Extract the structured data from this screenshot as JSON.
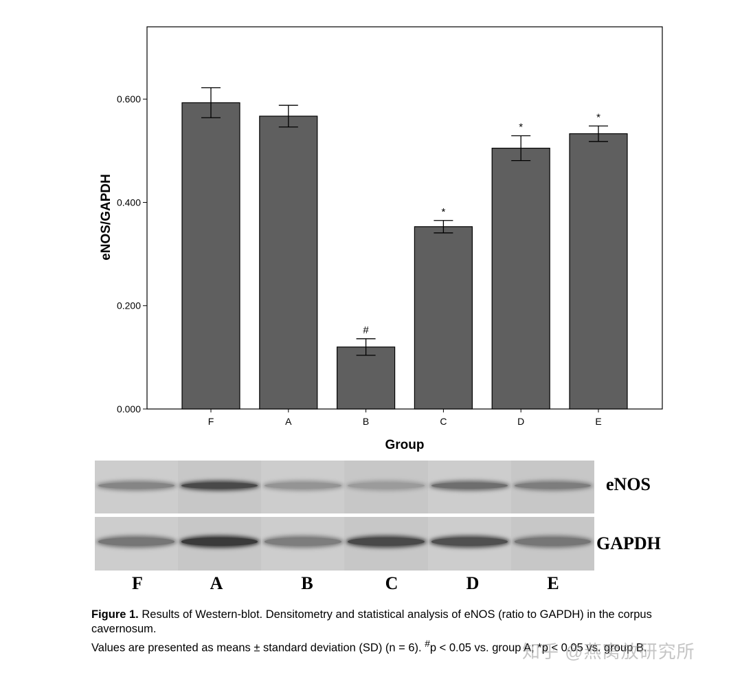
{
  "chart_data": {
    "type": "bar",
    "title": "",
    "xlabel": "Group",
    "ylabel": "eNOS/GAPDH",
    "categories": [
      "F",
      "A",
      "B",
      "C",
      "D",
      "E"
    ],
    "values": [
      0.593,
      0.567,
      0.12,
      0.353,
      0.505,
      0.533
    ],
    "error": [
      0.029,
      0.021,
      0.016,
      0.012,
      0.024,
      0.015
    ],
    "annotations": [
      "",
      "",
      "#",
      "*",
      "*",
      "*"
    ],
    "yticks": [
      "0.000",
      "0.200",
      "0.400",
      "0.600"
    ],
    "ylim": [
      0,
      0.74
    ],
    "grid": false,
    "bar_color": "#5f5f5f"
  },
  "blot": {
    "rows": [
      "eNOS",
      "GAPDH"
    ],
    "lanes": [
      "F",
      "A",
      "B",
      "C",
      "D",
      "E"
    ],
    "enos_intensity": [
      0.45,
      0.85,
      0.35,
      0.3,
      0.6,
      0.5
    ],
    "gapdh_intensity": [
      0.55,
      0.95,
      0.5,
      0.85,
      0.8,
      0.55
    ]
  },
  "caption": {
    "fig_label": "Figure 1.",
    "line1": "Results of Western-blot. Densitometry and statistical analysis of eNOS (ratio to GAPDH) in the corpus cavernosum.",
    "line2_pre": "Values are presented as means ± standard deviation (SD) (n = 6). ",
    "sup": "#",
    "line2_post": "p < 0.05 vs. group A; *p < 0.05 vs. group B."
  },
  "watermark": "知乎 @燕窝放研究所"
}
